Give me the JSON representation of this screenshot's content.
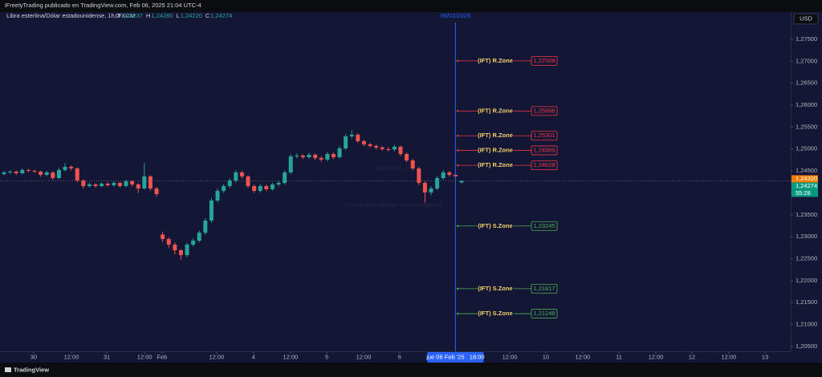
{
  "header": {
    "publisher": "iFreelyTrading publicado en TradingView.com, Feb 06, 2025 21:04 UTC-4",
    "currency_button": "USD",
    "brand": "TradingView"
  },
  "chart_data": {
    "type": "candlestick",
    "symbol_title": "Libra esterlina/Dólar estadounidense, 1h, FXCM",
    "ohlc_legend": [
      {
        "key": "O",
        "value": 1.24237,
        "label": "1,24237"
      },
      {
        "key": "H",
        "value": 1.2428,
        "label": "1,24280"
      },
      {
        "key": "L",
        "value": 1.2422,
        "label": "1,24220"
      },
      {
        "key": "C",
        "value": 1.24274,
        "label": "1,24274"
      }
    ],
    "watermark": {
      "symbol": "GBPUSD, 1h",
      "description": "Libra esterlina/Dólar estadounidense"
    },
    "x": [
      0,
      2,
      4,
      6,
      8,
      10,
      12,
      14,
      16,
      18,
      20,
      22,
      24,
      26,
      28,
      30,
      32,
      34,
      36,
      38,
      40,
      42,
      44,
      46,
      48,
      50,
      52,
      54,
      56,
      58,
      60,
      62,
      64,
      66,
      68,
      70,
      72,
      74,
      76,
      78,
      80,
      82,
      84,
      86,
      88,
      90,
      92,
      94,
      96,
      98,
      100,
      102,
      104,
      106,
      108,
      110,
      112,
      114,
      116,
      118,
      120,
      122,
      124,
      126,
      128,
      130,
      132,
      134,
      136,
      138,
      140,
      142,
      144,
      146,
      148,
      150
    ],
    "open": [
      1.2443,
      1.24466,
      1.24484,
      1.24448,
      1.24521,
      1.24503,
      1.24484,
      1.24411,
      1.24466,
      1.24338,
      1.24521,
      1.24594,
      1.24557,
      1.24283,
      1.24155,
      1.24192,
      1.24155,
      1.2421,
      1.24174,
      1.24228,
      1.24155,
      1.24265,
      1.24192,
      1.241,
      1.24375,
      1.241,
      1.2305,
      1.22949,
      1.22821,
      1.22693,
      1.22583,
      1.22821,
      1.22912,
      1.23095,
      1.23369,
      1.23826,
      1.24046,
      1.24155,
      1.24283,
      1.24466,
      1.24375,
      1.24155,
      1.24046,
      1.24155,
      1.24082,
      1.24192,
      1.24228,
      1.24466,
      1.24832,
      1.2485,
      1.24813,
      1.24868,
      1.24795,
      1.24758,
      1.24886,
      1.24813,
      1.25014,
      1.25288,
      1.25325,
      1.25179,
      1.25106,
      1.25069,
      1.25033,
      1.24996,
      1.2499,
      1.25051,
      1.24886,
      1.2474,
      1.24557,
      1.24228,
      1.24009,
      1.241,
      1.24338,
      1.24466,
      1.24411,
      1.24237
    ],
    "high": [
      1.245,
      1.2452,
      1.2451,
      1.2456,
      1.2455,
      1.2453,
      1.2451,
      1.245,
      1.2449,
      1.2457,
      1.2468,
      1.2463,
      1.2458,
      1.2431,
      1.2423,
      1.2422,
      1.2424,
      1.2424,
      1.2426,
      1.2425,
      1.243,
      1.2429,
      1.2422,
      1.2468,
      1.244,
      1.2413,
      1.2312,
      1.2299,
      1.2287,
      1.2272,
      1.2286,
      1.2296,
      1.2314,
      1.2342,
      1.2388,
      1.241,
      1.242,
      1.2433,
      1.2452,
      1.245,
      1.244,
      1.2419,
      1.242,
      1.2419,
      1.2423,
      1.2427,
      1.2451,
      1.2488,
      1.249,
      1.2488,
      1.2491,
      1.249,
      1.2483,
      1.2493,
      1.2492,
      1.2506,
      1.2534,
      1.2542,
      1.2536,
      1.2521,
      1.2514,
      1.251,
      1.2507,
      1.2504,
      1.2509,
      1.2508,
      1.2492,
      1.2478,
      1.246,
      1.2426,
      1.2415,
      1.2438,
      1.2452,
      1.245,
      1.2444,
      1.2428
    ],
    "low": [
      1.244,
      1.2443,
      1.2441,
      1.2442,
      1.2447,
      1.2445,
      1.2437,
      1.2438,
      1.243,
      1.2431,
      1.2449,
      1.2451,
      1.2424,
      1.241,
      1.2412,
      1.2412,
      1.2413,
      1.2414,
      1.2414,
      1.2412,
      1.2413,
      1.2415,
      1.24,
      1.2408,
      1.2405,
      1.2392,
      1.2288,
      1.2275,
      1.226,
      1.2248,
      1.2254,
      1.2278,
      1.2288,
      1.2305,
      1.2332,
      1.2378,
      1.24,
      1.2411,
      1.2424,
      1.2433,
      1.2411,
      1.24,
      1.2401,
      1.2404,
      1.2405,
      1.2415,
      1.2419,
      1.2443,
      1.2479,
      1.2477,
      1.2478,
      1.2475,
      1.2471,
      1.2472,
      1.2477,
      1.2478,
      1.2498,
      1.2524,
      1.2514,
      1.2506,
      1.2503,
      1.2499,
      1.2496,
      1.2495,
      1.2495,
      1.2484,
      1.247,
      1.2451,
      1.2418,
      1.2378,
      1.2395,
      1.2406,
      1.243,
      1.2437,
      1.2433,
      1.2422
    ],
    "close": [
      1.24466,
      1.24484,
      1.24448,
      1.24521,
      1.24503,
      1.24484,
      1.24411,
      1.24466,
      1.24338,
      1.24521,
      1.24594,
      1.24557,
      1.24283,
      1.24155,
      1.24192,
      1.24155,
      1.2421,
      1.24174,
      1.24228,
      1.24155,
      1.24265,
      1.24192,
      1.241,
      1.24375,
      1.241,
      1.23973,
      1.22949,
      1.22821,
      1.22693,
      1.22583,
      1.22821,
      1.22912,
      1.23095,
      1.23369,
      1.23826,
      1.24046,
      1.24155,
      1.24283,
      1.24466,
      1.24375,
      1.24155,
      1.24046,
      1.24155,
      1.24082,
      1.24192,
      1.24228,
      1.24466,
      1.24832,
      1.2485,
      1.24813,
      1.24868,
      1.24795,
      1.24758,
      1.24886,
      1.24813,
      1.25014,
      1.25288,
      1.25325,
      1.25179,
      1.25106,
      1.25069,
      1.25033,
      1.24996,
      1.2499,
      1.25051,
      1.24886,
      1.2474,
      1.24557,
      1.24228,
      1.24009,
      1.241,
      1.24338,
      1.24466,
      1.24411,
      1.24375,
      1.24274
    ],
    "up_color": "#26a69a",
    "down_color": "#ef5350",
    "xlim": [
      -1.32,
      257.9
    ],
    "xticks": [
      {
        "value": 9.7,
        "label": "30"
      },
      {
        "value": 22.1,
        "label": "12:00"
      },
      {
        "value": 33.7,
        "label": "31"
      },
      {
        "value": 46.1,
        "label": "12:00"
      },
      {
        "value": 51.8,
        "label": "Feb"
      },
      {
        "value": 69.7,
        "label": "12:00"
      },
      {
        "value": 81.8,
        "label": "4"
      },
      {
        "value": 93.9,
        "label": "12:00"
      },
      {
        "value": 105.8,
        "label": "5"
      },
      {
        "value": 117.9,
        "label": "12:00"
      },
      {
        "value": 129.7,
        "label": "6"
      },
      {
        "value": 165.8,
        "label": "12:00"
      },
      {
        "value": 177.6,
        "label": "10"
      },
      {
        "value": 189.7,
        "label": "12:00"
      },
      {
        "value": 201.6,
        "label": "11"
      },
      {
        "value": 213.7,
        "label": "12:00"
      },
      {
        "value": 225.5,
        "label": "12"
      },
      {
        "value": 237.6,
        "label": "12:00"
      },
      {
        "value": 249.5,
        "label": "13"
      }
    ],
    "ylim": [
      1.2039,
      1.2812
    ],
    "yticks": [
      {
        "value": 1.275,
        "label": "1,27500"
      },
      {
        "value": 1.27,
        "label": "1,27000"
      },
      {
        "value": 1.265,
        "label": "1,26500"
      },
      {
        "value": 1.26,
        "label": "1,26000"
      },
      {
        "value": 1.255,
        "label": "1,25500"
      },
      {
        "value": 1.25,
        "label": "1,25000"
      },
      {
        "value": 1.245,
        "label": "1,24500"
      },
      {
        "value": 1.24,
        "label": "1,24000"
      },
      {
        "value": 1.235,
        "label": "1,23500"
      },
      {
        "value": 1.23,
        "label": "1,23000"
      },
      {
        "value": 1.225,
        "label": "1,22500"
      },
      {
        "value": 1.22,
        "label": "1,22000"
      },
      {
        "value": 1.215,
        "label": "1,21500"
      },
      {
        "value": 1.21,
        "label": "1,21000"
      },
      {
        "value": 1.205,
        "label": "1,20500"
      }
    ],
    "grid": false,
    "levels": [
      {
        "text": "(IFT) R.Zone",
        "value": 1.27008,
        "value_label": "1,27008",
        "color": "#f23645"
      },
      {
        "text": "(IFT) R.Zone",
        "value": 1.25866,
        "value_label": "1,25866",
        "color": "#f23645"
      },
      {
        "text": "(IFT) R.Zone",
        "value": 1.25301,
        "value_label": "1,25301",
        "color": "#f23645"
      },
      {
        "text": "(IFT) R.Zone",
        "value": 1.24969,
        "value_label": "1,24969",
        "color": "#f23645"
      },
      {
        "text": "(IFT) R.Zone",
        "value": 1.24628,
        "value_label": "1,24628",
        "color": "#f23645"
      },
      {
        "text": "(IFT) S.Zone",
        "value": 1.23245,
        "value_label": "1,23245",
        "color": "#4caf50"
      },
      {
        "text": "(IFT) S.Zone",
        "value": 1.21817,
        "value_label": "1,21817",
        "color": "#4caf50"
      },
      {
        "text": "(IFT) S.Zone",
        "value": 1.21248,
        "value_label": "1,21248",
        "color": "#4caf50"
      }
    ],
    "level_text_color": "#f5d06b",
    "cursor": {
      "x": 148,
      "date_label": "06/02/2025",
      "axis_label": "jue 06 Feb '25   18:00",
      "color": "#2962ff"
    },
    "price_tags": [
      {
        "value": 1.2432,
        "label": "1,24320",
        "color": "#f57c00"
      },
      {
        "value": 1.24274,
        "label": "1,24274",
        "color": "#089981"
      }
    ],
    "countdown": "55:28"
  }
}
